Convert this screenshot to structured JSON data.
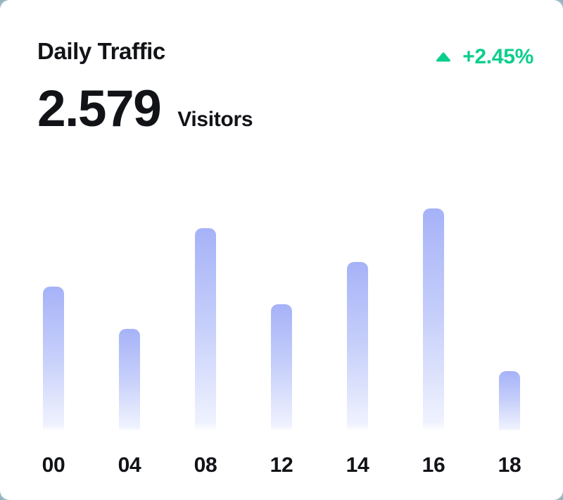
{
  "card": {
    "title": "Daily Traffic",
    "value": "2.579",
    "value_unit": "Visitors",
    "delta": "+2.45%",
    "delta_direction": "up"
  },
  "colors": {
    "delta_green": "#0BCE8D",
    "bar_gradient_top": "#A6B2F8",
    "bar_gradient_mid": "#C7D0FA",
    "bar_gradient_bottom": "#EFF2FE",
    "text_dark": "#121317",
    "card_background": "#FFFFFF",
    "background_behind_card": "#4A606C"
  },
  "chart_data": {
    "type": "bar",
    "title": "Daily Traffic",
    "categories": [
      "00",
      "04",
      "08",
      "12",
      "14",
      "16",
      "18"
    ],
    "values": [
      65,
      46,
      91,
      57,
      76,
      100,
      27
    ],
    "xlabel": "",
    "ylabel": "",
    "ylim": [
      0,
      100
    ],
    "grid": false,
    "legend": false,
    "y_axis_visible": false,
    "bar_corner": "rounded-top"
  }
}
